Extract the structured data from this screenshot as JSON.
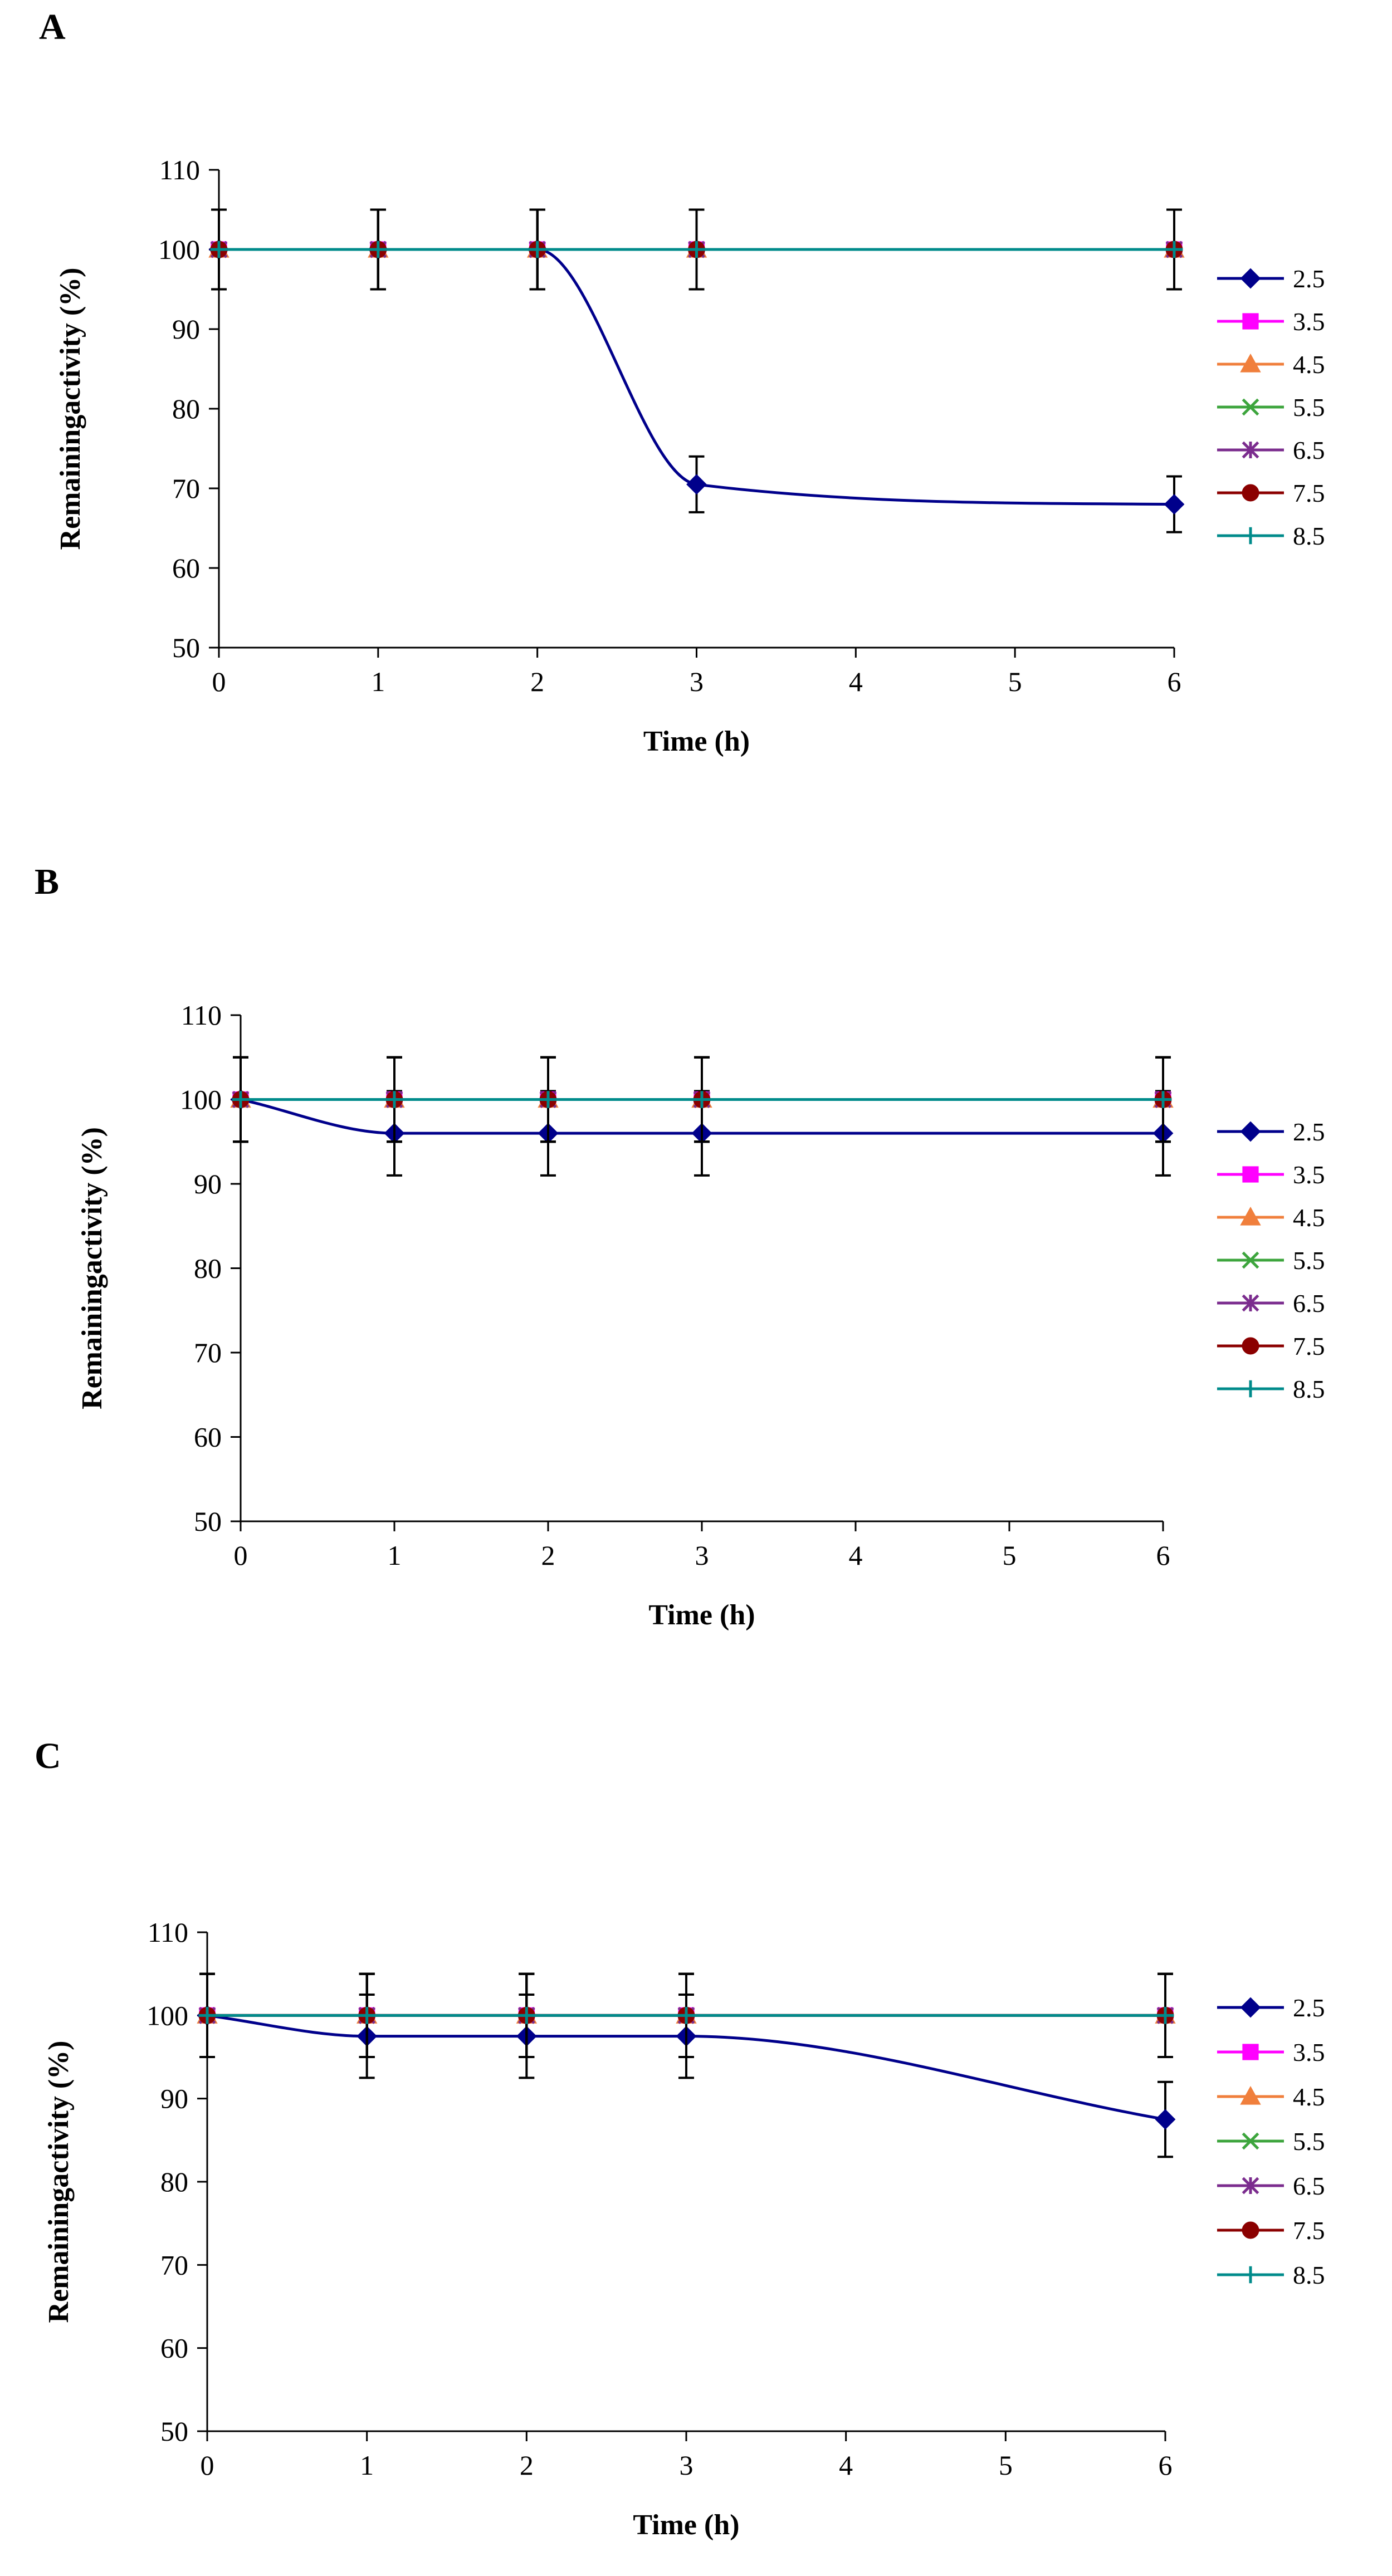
{
  "figure": {
    "panel_labels": [
      "A",
      "B",
      "C"
    ]
  },
  "chart_data": [
    {
      "panel": "A",
      "type": "line",
      "title": "",
      "xlabel": "Time (h)",
      "ylabel": "Remainingactivity (%)",
      "x_axis_values": [
        0,
        1,
        2,
        3,
        4,
        5,
        6
      ],
      "xlim": [
        0,
        6
      ],
      "ylim": [
        50,
        110
      ],
      "y_ticks": [
        50,
        60,
        70,
        80,
        90,
        100,
        110
      ],
      "x": [
        0,
        1,
        2,
        3,
        6
      ],
      "legend_position": "right",
      "error_bars": true,
      "series": [
        {
          "name": "2.5",
          "color": "#00008B",
          "marker": "diamond",
          "values": [
            100,
            100,
            100,
            70.5,
            68
          ],
          "errors": [
            5,
            5,
            5,
            3.5,
            3.5
          ]
        },
        {
          "name": "3.5",
          "color": "#FF00FF",
          "marker": "square",
          "values": [
            100,
            100,
            100,
            100,
            100
          ],
          "errors": [
            5,
            5,
            5,
            5,
            5
          ]
        },
        {
          "name": "4.5",
          "color": "#F07F3C",
          "marker": "triangle",
          "values": [
            100,
            100,
            100,
            100,
            100
          ],
          "errors": [
            5,
            5,
            5,
            5,
            5
          ]
        },
        {
          "name": "5.5",
          "color": "#3DA53D",
          "marker": "x",
          "values": [
            100,
            100,
            100,
            100,
            100
          ],
          "errors": [
            5,
            5,
            5,
            5,
            5
          ]
        },
        {
          "name": "6.5",
          "color": "#7B2C8E",
          "marker": "star",
          "values": [
            100,
            100,
            100,
            100,
            100
          ],
          "errors": [
            5,
            5,
            5,
            5,
            5
          ]
        },
        {
          "name": "7.5",
          "color": "#8B0000",
          "marker": "circle",
          "values": [
            100,
            100,
            100,
            100,
            100
          ],
          "errors": [
            5,
            5,
            5,
            5,
            5
          ]
        },
        {
          "name": "8.5",
          "color": "#008B8B",
          "marker": "plus",
          "values": [
            100,
            100,
            100,
            100,
            100
          ],
          "errors": [
            5,
            5,
            5,
            5,
            5
          ]
        }
      ]
    },
    {
      "panel": "B",
      "type": "line",
      "title": "",
      "xlabel": "Time (h)",
      "ylabel": "Remainingactivity (%)",
      "x_axis_values": [
        0,
        1,
        2,
        3,
        4,
        5,
        6
      ],
      "xlim": [
        0,
        6
      ],
      "ylim": [
        50,
        110
      ],
      "y_ticks": [
        50,
        60,
        70,
        80,
        90,
        100,
        110
      ],
      "x": [
        0,
        1,
        2,
        3,
        6
      ],
      "legend_position": "right",
      "error_bars": true,
      "series": [
        {
          "name": "2.5",
          "color": "#00008B",
          "marker": "diamond",
          "values": [
            100,
            96,
            96,
            96,
            96
          ],
          "errors": [
            5,
            5,
            5,
            5,
            5
          ]
        },
        {
          "name": "3.5",
          "color": "#FF00FF",
          "marker": "square",
          "values": [
            100,
            100,
            100,
            100,
            100
          ],
          "errors": [
            5,
            5,
            5,
            5,
            5
          ]
        },
        {
          "name": "4.5",
          "color": "#F07F3C",
          "marker": "triangle",
          "values": [
            100,
            100,
            100,
            100,
            100
          ],
          "errors": [
            5,
            5,
            5,
            5,
            5
          ]
        },
        {
          "name": "5.5",
          "color": "#3DA53D",
          "marker": "x",
          "values": [
            100,
            100,
            100,
            100,
            100
          ],
          "errors": [
            5,
            5,
            5,
            5,
            5
          ]
        },
        {
          "name": "6.5",
          "color": "#7B2C8E",
          "marker": "star",
          "values": [
            100,
            100,
            100,
            100,
            100
          ],
          "errors": [
            5,
            5,
            5,
            5,
            5
          ]
        },
        {
          "name": "7.5",
          "color": "#8B0000",
          "marker": "circle",
          "values": [
            100,
            100,
            100,
            100,
            100
          ],
          "errors": [
            5,
            5,
            5,
            5,
            5
          ]
        },
        {
          "name": "8.5",
          "color": "#008B8B",
          "marker": "plus",
          "values": [
            100,
            100,
            100,
            100,
            100
          ],
          "errors": [
            5,
            5,
            5,
            5,
            5
          ]
        }
      ]
    },
    {
      "panel": "C",
      "type": "line",
      "title": "",
      "xlabel": "Time (h)",
      "ylabel": "Remainingactivity (%)",
      "x_axis_values": [
        0,
        1,
        2,
        3,
        4,
        5,
        6
      ],
      "xlim": [
        0,
        6
      ],
      "ylim": [
        50,
        110
      ],
      "y_ticks": [
        50,
        60,
        70,
        80,
        90,
        100,
        110
      ],
      "x": [
        0,
        1,
        2,
        3,
        6
      ],
      "legend_position": "right",
      "error_bars": true,
      "series": [
        {
          "name": "2.5",
          "color": "#00008B",
          "marker": "diamond",
          "values": [
            100,
            97.5,
            97.5,
            97.5,
            87.5
          ],
          "errors": [
            5,
            5,
            5,
            5,
            4.5
          ]
        },
        {
          "name": "3.5",
          "color": "#FF00FF",
          "marker": "square",
          "values": [
            100,
            100,
            100,
            100,
            100
          ],
          "errors": [
            5,
            5,
            5,
            5,
            5
          ]
        },
        {
          "name": "4.5",
          "color": "#F07F3C",
          "marker": "triangle",
          "values": [
            100,
            100,
            100,
            100,
            100
          ],
          "errors": [
            5,
            5,
            5,
            5,
            5
          ]
        },
        {
          "name": "5.5",
          "color": "#3DA53D",
          "marker": "x",
          "values": [
            100,
            100,
            100,
            100,
            100
          ],
          "errors": [
            5,
            5,
            5,
            5,
            5
          ]
        },
        {
          "name": "6.5",
          "color": "#7B2C8E",
          "marker": "star",
          "values": [
            100,
            100,
            100,
            100,
            100
          ],
          "errors": [
            5,
            5,
            5,
            5,
            5
          ]
        },
        {
          "name": "7.5",
          "color": "#8B0000",
          "marker": "circle",
          "values": [
            100,
            100,
            100,
            100,
            100
          ],
          "errors": [
            5,
            5,
            5,
            5,
            5
          ]
        },
        {
          "name": "8.5",
          "color": "#008B8B",
          "marker": "plus",
          "values": [
            100,
            100,
            100,
            100,
            100
          ],
          "errors": [
            5,
            5,
            5,
            5,
            5
          ]
        }
      ]
    }
  ]
}
